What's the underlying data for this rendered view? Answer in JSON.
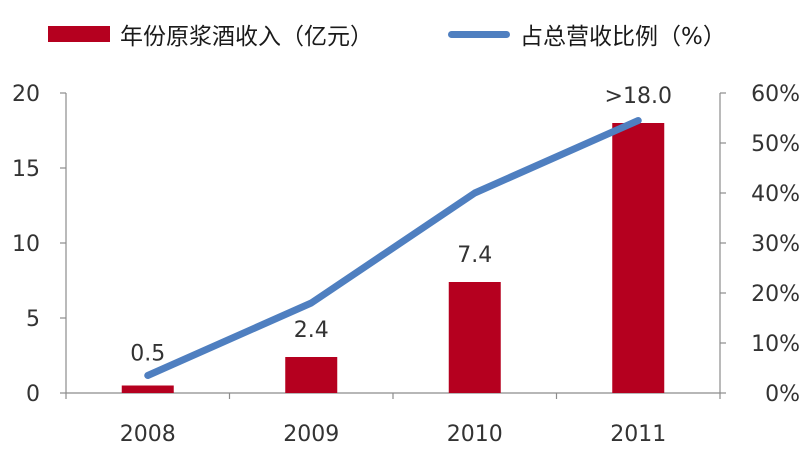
{
  "chart_data": {
    "type": "bar",
    "categories": [
      "2008",
      "2009",
      "2010",
      "2011"
    ],
    "series": [
      {
        "name": "年份原浆酒收入（亿元）",
        "type": "bar",
        "axis": "left",
        "values": [
          0.5,
          2.4,
          7.4,
          18.0
        ],
        "labels": [
          "0.5",
          "2.4",
          "7.4",
          ">18.0"
        ],
        "color": "#b5001f"
      },
      {
        "name": "占总营收比例（%）",
        "type": "line",
        "axis": "right",
        "values": [
          3.5,
          18,
          40,
          54.5
        ],
        "color": "#4f7fc0"
      }
    ],
    "yleft": {
      "lim": [
        0,
        20
      ],
      "ticks": [
        "0",
        "5",
        "10",
        "15",
        "20"
      ]
    },
    "yright": {
      "lim": [
        0,
        60
      ],
      "ticks": [
        "0%",
        "10%",
        "20%",
        "30%",
        "40%",
        "50%",
        "60%"
      ]
    },
    "legend": "top",
    "grid": false
  }
}
